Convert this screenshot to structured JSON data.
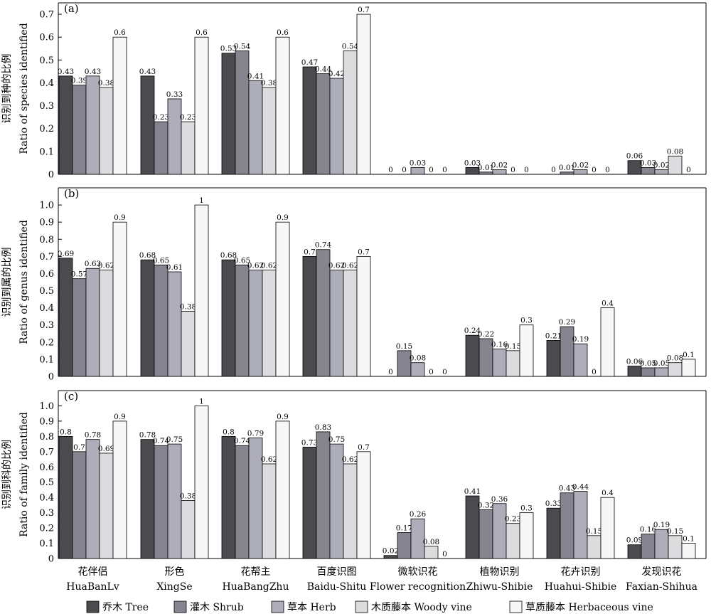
{
  "categories": [
    {
      "zh": "花伴侣",
      "en": "HuaBanLv"
    },
    {
      "zh": "形色",
      "en": "XingSe"
    },
    {
      "zh": "花帮主",
      "en": "HuaBangZhu"
    },
    {
      "zh": "百度识图",
      "en": "Baidu-Shitu"
    },
    {
      "zh": "微软识花",
      "en": "Flower recognition"
    },
    {
      "zh": "植物识别",
      "en": "Zhiwu-Shibie"
    },
    {
      "zh": "花卉识别",
      "en": "Huahui-Shibie"
    },
    {
      "zh": "发现识花",
      "en": "Faxian-Shihua"
    }
  ],
  "legend": [
    {
      "label": "乔木 Tree",
      "color": "#4a4a4f"
    },
    {
      "label": "灌木 Shrub",
      "color": "#85848f"
    },
    {
      "label": "草本 Herb",
      "color": "#aeadba"
    },
    {
      "label": "木质藤本 Woody vine",
      "color": "#dcdcdf"
    },
    {
      "label": "草质藤本 Herbaceous vine",
      "color": "#f7f7f7"
    }
  ],
  "chart_data": [
    {
      "type": "bar",
      "panel_label": "(a)",
      "ylabel_zh": "识别到种的比例",
      "ylabel_en": "Ratio of species identified",
      "ylim": [
        0,
        0.75
      ],
      "yticks": [
        "0",
        "0.1",
        "0.2",
        "0.3",
        "0.4",
        "0.5",
        "0.6",
        "0.7"
      ],
      "grid": false,
      "series": [
        {
          "name": "乔木 Tree",
          "values": [
            0.43,
            0.43,
            0.53,
            0.47,
            0,
            0.03,
            0,
            0.06
          ]
        },
        {
          "name": "灌木 Shrub",
          "values": [
            0.39,
            0.23,
            0.54,
            0.44,
            0,
            0.01,
            0.01,
            0.03
          ]
        },
        {
          "name": "草本 Herb",
          "values": [
            0.43,
            0.33,
            0.41,
            0.42,
            0.03,
            0.02,
            0.02,
            0.02
          ]
        },
        {
          "name": "木质藤本 Woody vine",
          "values": [
            0.38,
            0.23,
            0.38,
            0.54,
            0,
            0,
            0,
            0.08
          ]
        },
        {
          "name": "草质藤本 Herbaceous vine",
          "values": [
            0.6,
            0.6,
            0.6,
            0.7,
            0,
            0,
            0,
            0
          ]
        }
      ]
    },
    {
      "type": "bar",
      "panel_label": "(b)",
      "ylabel_zh": "识别到属的比例",
      "ylabel_en": "Ratio of genus identified",
      "ylim": [
        0,
        1.1
      ],
      "yticks": [
        "0",
        "0.1",
        "0.2",
        "0.3",
        "0.4",
        "0.5",
        "0.6",
        "0.7",
        "0.8",
        "0.9",
        "1.0"
      ],
      "grid": false,
      "series": [
        {
          "name": "乔木 Tree",
          "values": [
            0.69,
            0.68,
            0.68,
            0.7,
            0,
            0.24,
            0.21,
            0.06
          ]
        },
        {
          "name": "灌木 Shrub",
          "values": [
            0.57,
            0.65,
            0.65,
            0.74,
            0.15,
            0.22,
            0.29,
            0.05
          ]
        },
        {
          "name": "草本 Herb",
          "values": [
            0.63,
            0.61,
            0.62,
            0.62,
            0.08,
            0.16,
            0.19,
            0.05
          ]
        },
        {
          "name": "木质藤本 Woody vine",
          "values": [
            0.62,
            0.38,
            0.62,
            0.62,
            0,
            0.15,
            0,
            0.08
          ]
        },
        {
          "name": "草质藤本 Herbaceous vine",
          "values": [
            0.9,
            1,
            0.9,
            0.7,
            0,
            0.3,
            0.4,
            0.1
          ]
        }
      ]
    },
    {
      "type": "bar",
      "panel_label": "(c)",
      "ylabel_zh": "识别到科的比例",
      "ylabel_en": "Ratio of family identified",
      "ylim": [
        0,
        1.1
      ],
      "yticks": [
        "0",
        "0.1",
        "0.2",
        "0.3",
        "0.4",
        "0.5",
        "0.6",
        "0.7",
        "0.8",
        "0.9",
        "1.0"
      ],
      "grid": false,
      "series": [
        {
          "name": "乔木 Tree",
          "values": [
            0.8,
            0.78,
            0.8,
            0.73,
            0.02,
            0.41,
            0.33,
            0.09
          ]
        },
        {
          "name": "灌木 Shrub",
          "values": [
            0.7,
            0.74,
            0.74,
            0.83,
            0.17,
            0.32,
            0.43,
            0.16
          ]
        },
        {
          "name": "草本 Herb",
          "values": [
            0.78,
            0.75,
            0.79,
            0.75,
            0.26,
            0.36,
            0.44,
            0.19
          ]
        },
        {
          "name": "木质藤本 Woody vine",
          "values": [
            0.69,
            0.38,
            0.62,
            0.62,
            0.08,
            0.23,
            0.15,
            0.15
          ]
        },
        {
          "name": "草质藤本 Herbaceous vine",
          "values": [
            0.9,
            1,
            0.9,
            0.7,
            0,
            0.3,
            0.4,
            0.1
          ]
        }
      ]
    }
  ]
}
